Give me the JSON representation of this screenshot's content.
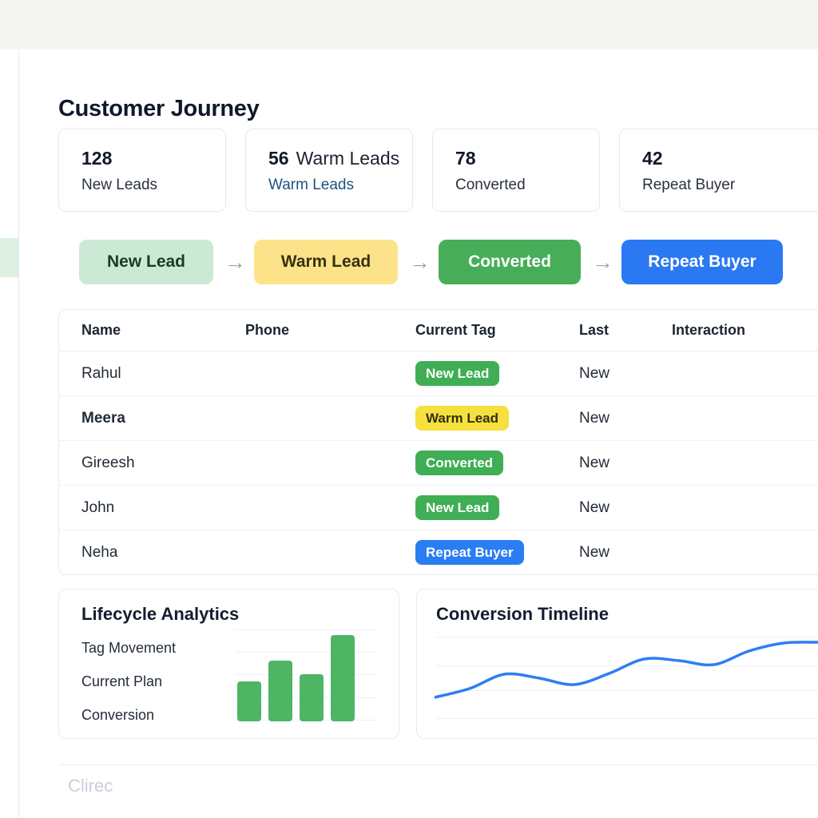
{
  "page": {
    "title": "Customer Journey",
    "watermark": "Clirec"
  },
  "stats": [
    {
      "value": "128",
      "label": "New Leads"
    },
    {
      "value": "56",
      "value_suffix": "Warm Leads",
      "label": "Warm Leads",
      "label_variant": "link"
    },
    {
      "value": "78",
      "label": "Converted"
    },
    {
      "value": "42",
      "label": "Repeat Buyer"
    }
  ],
  "pipeline": {
    "arrow": "→",
    "stages": [
      {
        "label": "New Lead",
        "variant": "soft-green"
      },
      {
        "label": "Warm Lead",
        "variant": "soft-yellow"
      },
      {
        "label": "Converted",
        "variant": "solid-green"
      },
      {
        "label": "Repeat Buyer",
        "variant": "solid-blue"
      }
    ]
  },
  "table": {
    "columns": [
      "Name",
      "Phone",
      "Current Tag",
      "Last",
      "Interaction"
    ],
    "rows": [
      {
        "name": "Rahul",
        "tag": {
          "label": "New Lead",
          "variant": "green"
        },
        "last": "New"
      },
      {
        "name": "Meera",
        "name_weight": "bold",
        "tag": {
          "label": "Warm Lead",
          "variant": "yellow"
        },
        "last": "New"
      },
      {
        "name": "Gireesh",
        "tag": {
          "label": "Converted",
          "variant": "green"
        },
        "last": "New"
      },
      {
        "name": "John",
        "tag": {
          "label": "New Lead",
          "variant": "green"
        },
        "last": "New"
      },
      {
        "name": "Neha",
        "tag": {
          "label": "Repeat Buyer",
          "variant": "blue"
        },
        "last": "New"
      }
    ],
    "placeholders": {
      "phone": "dash-line",
      "interaction": "dash-line"
    }
  },
  "panels": {
    "lifecycle": {
      "title": "Lifecycle Analytics",
      "items": [
        "Tag Movement",
        "Current Plan",
        "Conversion"
      ]
    },
    "timeline": {
      "title": "Conversion Timeline"
    }
  },
  "chart_data": [
    {
      "type": "bar",
      "title": "Lifecycle Analytics",
      "categories": [
        "",
        "",
        "",
        ""
      ],
      "values": [
        46,
        70,
        55,
        100
      ],
      "ylim": [
        0,
        106
      ],
      "bar_color": "#4eb565",
      "grid": true,
      "legend": false
    },
    {
      "type": "line",
      "title": "Conversion Timeline",
      "x": [
        0,
        1,
        2,
        3,
        4,
        5,
        6,
        7,
        8,
        9,
        10,
        11
      ],
      "values": [
        13,
        24,
        42,
        37,
        29,
        43,
        61,
        59,
        54,
        71,
        81,
        82
      ],
      "ylim": [
        0,
        95
      ],
      "line_color": "#2e7ef2",
      "grid": true,
      "legend": false
    }
  ],
  "colors": {
    "badge_green": "#3fae55",
    "badge_yellow": "#f6e03e",
    "badge_blue": "#2a7df2",
    "stage_soft_green": "#cbe9d4",
    "stage_soft_yellow": "#fce38a",
    "stage_solid_green": "#47ad59",
    "stage_solid_blue": "#2b79f2",
    "bar_green": "#4eb565",
    "line_blue": "#2e7ef2"
  }
}
